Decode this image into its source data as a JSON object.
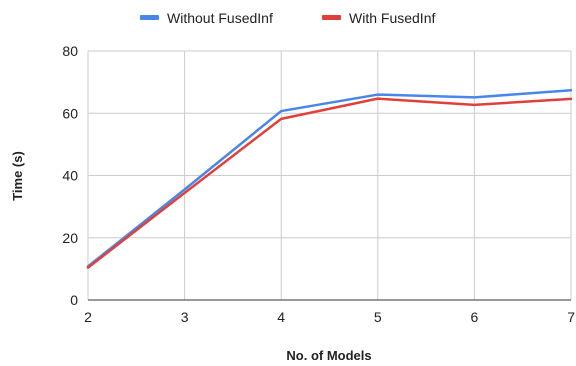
{
  "chart_data": {
    "type": "line",
    "title": "",
    "xlabel": "No. of Models",
    "ylabel": "Time (s)",
    "x": [
      2,
      3,
      4,
      5,
      6,
      7
    ],
    "xlim": [
      2,
      7
    ],
    "ylim": [
      0,
      80
    ],
    "xticks": [
      "2",
      "3",
      "4",
      "5",
      "6",
      "7"
    ],
    "yticks": [
      "0",
      "20",
      "40",
      "60",
      "80"
    ],
    "grid": true,
    "legend_position": "top",
    "series": [
      {
        "name": "Without FusedInf",
        "color": "#4a86e8",
        "values": [
          10.8,
          35.5,
          60.7,
          66.0,
          65.1,
          67.4
        ]
      },
      {
        "name": "With FusedInf",
        "color": "#e0403a",
        "values": [
          10.4,
          34.4,
          58.2,
          64.7,
          62.7,
          64.6
        ]
      }
    ]
  }
}
